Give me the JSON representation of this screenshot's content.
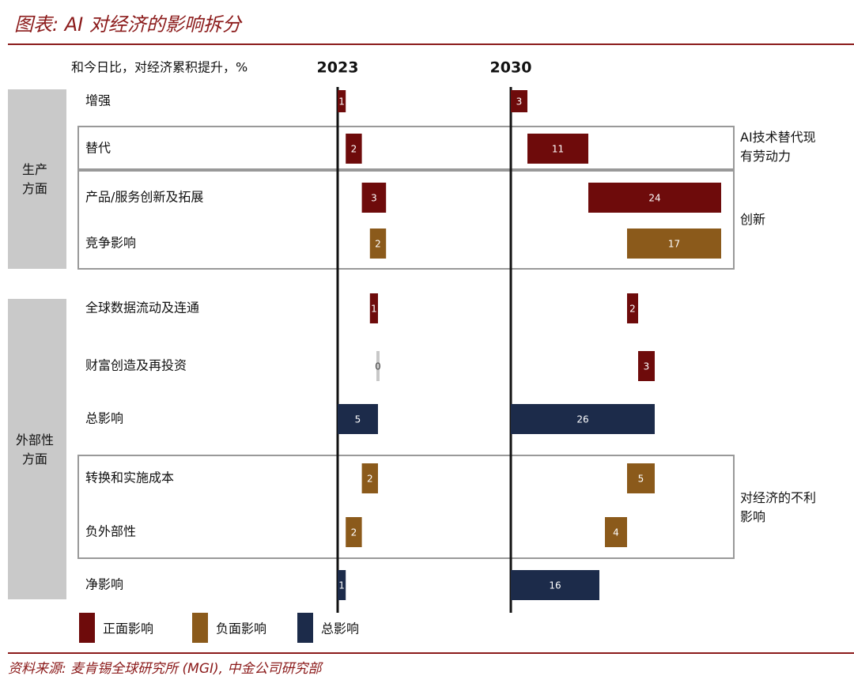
{
  "chart_data": {
    "type": "waterfall",
    "title": "图表: AI 对经济的影响拆分",
    "subtitle": "和今日比，对经济累积提升，%",
    "categories": [
      "增强",
      "替代",
      "产品/服务创新及拓展",
      "竞争影响",
      "全球数据流动及连通",
      "财富创造及再投资",
      "总影响",
      "转换和实施成本",
      "负外部性",
      "净影响"
    ],
    "groups": [
      "生产方面",
      "外部性方面"
    ],
    "annotations": [
      "AI技术替代现有劳动力",
      "创新",
      "对经济的不利影响"
    ],
    "legend": [
      {
        "name": "正面影响",
        "color": "#6e0b0b"
      },
      {
        "name": "负面影响",
        "color": "#8b5a1b"
      },
      {
        "name": "总影响",
        "color": "#1c2b4a"
      }
    ],
    "series": [
      {
        "name": "2023",
        "values": [
          1,
          2,
          3,
          2,
          1,
          0,
          5,
          2,
          2,
          1
        ],
        "colors": [
          "#6e0b0b",
          "#6e0b0b",
          "#6e0b0b",
          "#8b5a1b",
          "#6e0b0b",
          "#c8c8c8",
          "#1c2b4a",
          "#8b5a1b",
          "#8b5a1b",
          "#1c2b4a"
        ]
      },
      {
        "name": "2030",
        "values": [
          3,
          11,
          24,
          17,
          2,
          3,
          26,
          5,
          4,
          16
        ],
        "colors": [
          "#6e0b0b",
          "#6e0b0b",
          "#6e0b0b",
          "#8b5a1b",
          "#6e0b0b",
          "#6e0b0b",
          "#1c2b4a",
          "#8b5a1b",
          "#8b5a1b",
          "#1c2b4a"
        ]
      }
    ],
    "source": "资料来源: 麦肯锡全球研究所 (MGI), 中金公司研究部"
  }
}
